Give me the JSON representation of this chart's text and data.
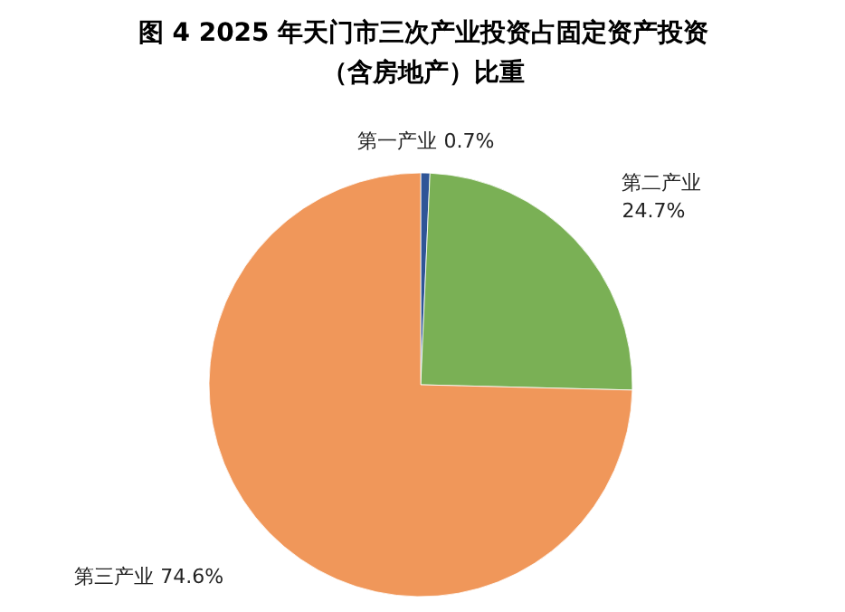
{
  "chart_data": {
    "type": "pie",
    "title": "图 4 2025 年天门市三次产业投资占固定资产投资（含房地产）比重",
    "categories": [
      "第一产业",
      "第二产业",
      "第三产业"
    ],
    "values": [
      0.7,
      24.7,
      74.6
    ],
    "value_labels": [
      "0.7%",
      "24.7%",
      "74.6%"
    ],
    "colors": [
      "#2f5597",
      "#7ab055",
      "#f0975a"
    ]
  }
}
